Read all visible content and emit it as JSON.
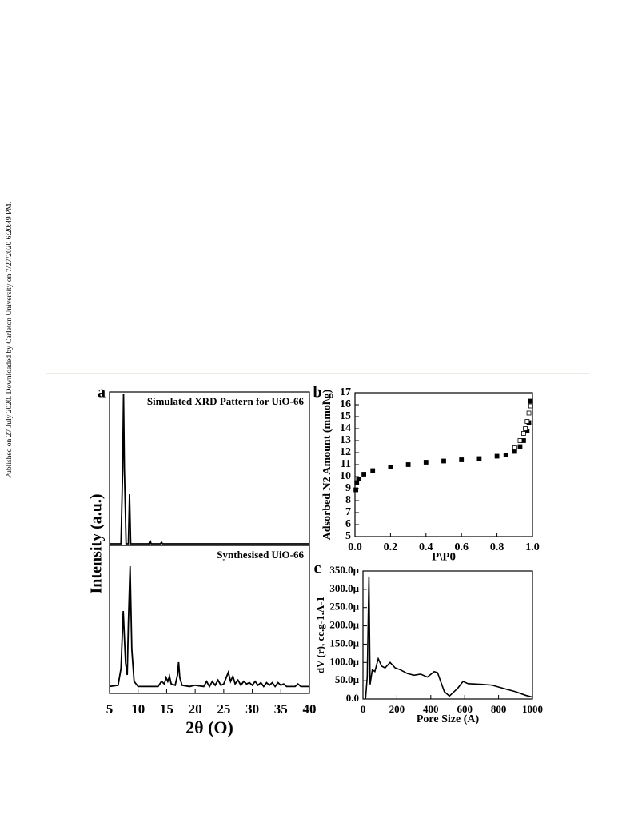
{
  "sidebar": "Published on 27 July 2020. Downloaded by Carleton University on 7/27/2020 6:20:49 PM.",
  "chart_data": [
    {
      "type": "stacked-line",
      "panel": "a",
      "xlabel": "2θ (O)",
      "ylabel": "Intensity (a.u.)",
      "xlim": [
        5,
        40
      ],
      "xticks": [
        5,
        10,
        15,
        20,
        25,
        30,
        35,
        40
      ],
      "color": "#000000",
      "subplots": [
        {
          "annotation": "Simulated XRD Pattern for  UiO-66",
          "ylim": [
            0,
            1
          ],
          "x": [
            5,
            7.0,
            7.3,
            7.45,
            7.6,
            7.9,
            8.3,
            8.5,
            8.7,
            9.0,
            11.9,
            12.1,
            12.3,
            13.9,
            14.1,
            14.3,
            40
          ],
          "values": [
            0,
            0,
            0.5,
            1,
            0.5,
            0,
            0,
            0.33,
            0,
            0,
            0,
            0.02,
            0,
            0,
            0.01,
            0,
            0
          ]
        },
        {
          "annotation": "Synthesised UiO-66",
          "ylim": [
            0,
            1
          ],
          "x": [
            5,
            6.5,
            7.0,
            7.4,
            7.8,
            8.1,
            8.3,
            8.6,
            8.9,
            9.3,
            10,
            13.5,
            14.1,
            14.6,
            14.9,
            15.2,
            15.5,
            15.8,
            16.5,
            16.9,
            17.1,
            17.3,
            17.7,
            19,
            20,
            21.5,
            22,
            22.5,
            23,
            23.5,
            24,
            24.5,
            25,
            25.8,
            26.2,
            26.6,
            27,
            27.5,
            28,
            28.5,
            29,
            29.5,
            30,
            30.5,
            31,
            31.5,
            32,
            32.5,
            33,
            33.5,
            34,
            34.5,
            35,
            35.5,
            36,
            37.5,
            38,
            38.5,
            40
          ],
          "values": [
            0.01,
            0.02,
            0.15,
            0.6,
            0.2,
            0.1,
            0.5,
            0.95,
            0.3,
            0.05,
            0.01,
            0.01,
            0.05,
            0.03,
            0.08,
            0.05,
            0.09,
            0.03,
            0.02,
            0.1,
            0.2,
            0.08,
            0.02,
            0.01,
            0.02,
            0.01,
            0.05,
            0.01,
            0.05,
            0.02,
            0.06,
            0.02,
            0.03,
            0.12,
            0.05,
            0.09,
            0.03,
            0.06,
            0.02,
            0.05,
            0.03,
            0.04,
            0.02,
            0.05,
            0.02,
            0.04,
            0.01,
            0.04,
            0.02,
            0.04,
            0.01,
            0.04,
            0.02,
            0.03,
            0.01,
            0.01,
            0.03,
            0.01,
            0.01
          ]
        }
      ]
    },
    {
      "type": "scatter",
      "panel": "b",
      "xlabel": "P\\P0",
      "ylabel": "Adsorbed N2 Amount (mmol\\g)",
      "xlim": [
        0,
        1
      ],
      "xticks": [
        {
          "value": 0,
          "label": "0.0"
        },
        {
          "value": 0.2,
          "label": "0.2"
        },
        {
          "value": 0.4,
          "label": "0.4"
        },
        {
          "value": 0.6,
          "label": "0.6"
        },
        {
          "value": 0.8,
          "label": "0.8"
        },
        {
          "value": 1,
          "label": "1.0"
        }
      ],
      "ylim": [
        5,
        17
      ],
      "yticks": [
        5,
        6,
        7,
        8,
        9,
        10,
        11,
        12,
        13,
        14,
        15,
        16,
        17
      ],
      "series": [
        {
          "color": "#000000",
          "marker": "filled",
          "x": [
            0.005,
            0.01,
            0.02,
            0.05,
            0.1,
            0.2,
            0.3,
            0.4,
            0.5,
            0.6,
            0.7,
            0.8,
            0.85,
            0.9,
            0.93,
            0.95,
            0.97,
            0.98,
            0.99
          ],
          "values": [
            8.9,
            9.5,
            9.8,
            10.2,
            10.5,
            10.8,
            11.0,
            11.2,
            11.3,
            11.4,
            11.5,
            11.7,
            11.8,
            12.1,
            12.5,
            13.0,
            13.8,
            14.5,
            16.3
          ]
        },
        {
          "color": "#000000",
          "marker": "open",
          "x": [
            0.99,
            0.98,
            0.97,
            0.96,
            0.95,
            0.93,
            0.9
          ],
          "values": [
            15.9,
            15.3,
            14.6,
            14.0,
            13.6,
            13.0,
            12.4
          ]
        }
      ]
    },
    {
      "type": "line",
      "panel": "c",
      "xlabel": "Pore Size (A)",
      "ylabel": "dV (r), cc.g-1.A-1",
      "xlim": [
        0,
        1000
      ],
      "xticks": [
        0,
        200,
        400,
        600,
        800,
        1000
      ],
      "ylim": [
        0,
        0.00035
      ],
      "yticks": [
        {
          "value": 0,
          "label": "0.0"
        },
        {
          "value": 5e-05,
          "label": "50.0μ"
        },
        {
          "value": 0.0001,
          "label": "100.0μ"
        },
        {
          "value": 0.00015,
          "label": "150.0μ"
        },
        {
          "value": 0.0002,
          "label": "200.0μ"
        },
        {
          "value": 0.00025,
          "label": "250.0μ"
        },
        {
          "value": 0.0003,
          "label": "300.0μ"
        },
        {
          "value": 0.00035,
          "label": "350.0μ"
        }
      ],
      "color": "#000000",
      "x": [
        15,
        25,
        35,
        42,
        55,
        70,
        90,
        110,
        130,
        160,
        190,
        220,
        260,
        300,
        340,
        380,
        420,
        440,
        480,
        510,
        560,
        590,
        620,
        700,
        760,
        820,
        900,
        960,
        1000
      ],
      "values": [
        0,
        6e-05,
        0.000335,
        4e-05,
        8e-05,
        7.5e-05,
        0.00011,
        9e-05,
        8.5e-05,
        0.0001,
        8.5e-05,
        8e-05,
        7e-05,
        6.5e-05,
        6.8e-05,
        6e-05,
        7.5e-05,
        7.2e-05,
        2e-05,
        8e-06,
        3e-05,
        4.8e-05,
        4.2e-05,
        4e-05,
        3.8e-05,
        3e-05,
        2e-05,
        1e-05,
        5e-06
      ]
    }
  ]
}
